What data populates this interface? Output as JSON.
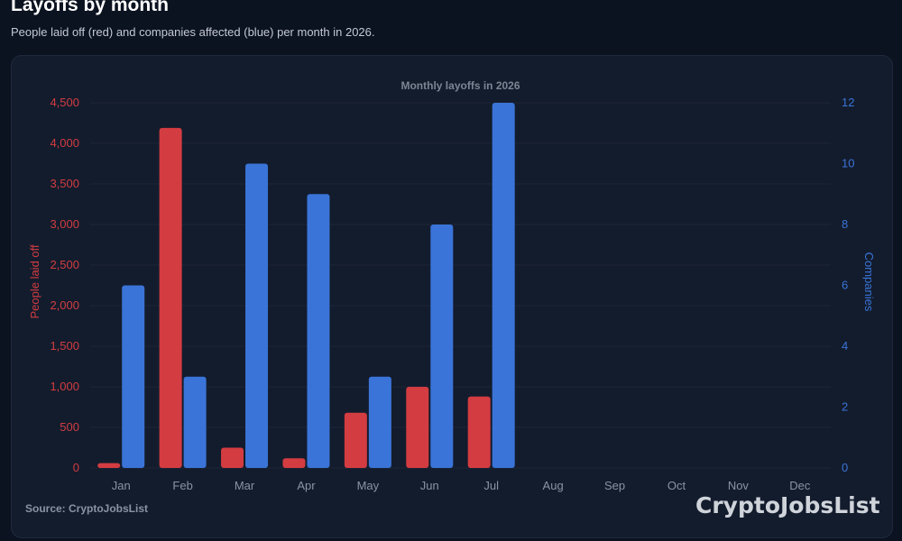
{
  "header": {
    "title": "Layoffs by month",
    "subtitle": "People laid off (red) and companies affected (blue) per month in 2026."
  },
  "footer": {
    "source": "Source: CryptoJobsList",
    "brand": "CryptoJobsList"
  },
  "colors": {
    "people": "#d33c41",
    "companies": "#3a74d8",
    "grid": "#1c2536",
    "tick": "#8a93a3"
  },
  "chart_data": {
    "type": "bar",
    "title": "Monthly layoffs in 2026",
    "categories": [
      "Jan",
      "Feb",
      "Mar",
      "Apr",
      "May",
      "Jun",
      "Jul",
      "Aug",
      "Sep",
      "Oct",
      "Nov",
      "Dec"
    ],
    "series": [
      {
        "axis": "left",
        "values": [
          60,
          4190,
          250,
          120,
          680,
          1000,
          880,
          null,
          null,
          null,
          null,
          null
        ]
      },
      {
        "axis": "right",
        "values": [
          6,
          3,
          10,
          9,
          3,
          8,
          12,
          null,
          null,
          null,
          null,
          null
        ]
      }
    ],
    "ylabel_left": "People laid off",
    "ylabel_right": "Companies",
    "ylim_left": [
      0,
      4500
    ],
    "ylim_right": [
      0,
      12
    ],
    "yticks_left": [
      "0",
      "500",
      "1,000",
      "1,500",
      "2,000",
      "2,500",
      "3,000",
      "3,500",
      "4,000",
      "4,500"
    ],
    "yticks_right": [
      "0",
      "2",
      "4",
      "6",
      "8",
      "10",
      "12"
    ],
    "grid": true,
    "legend": "none"
  }
}
